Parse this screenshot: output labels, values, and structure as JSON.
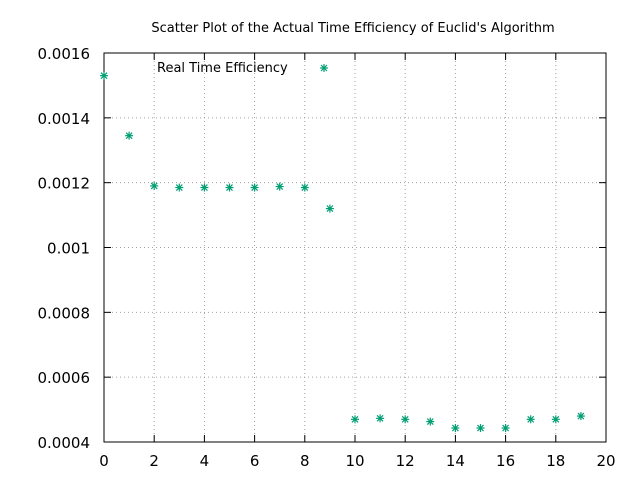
{
  "chart_data": {
    "type": "scatter",
    "title": "Scatter Plot of the Actual Time Efficiency of Euclid's Algorithm",
    "xlabel": "",
    "ylabel": "",
    "xlim": [
      0,
      20
    ],
    "ylim": [
      0.0004,
      0.0016
    ],
    "x_ticks": [
      0,
      2,
      4,
      6,
      8,
      10,
      12,
      14,
      16,
      18,
      20
    ],
    "x_tick_labels": [
      "0",
      "2",
      "4",
      "6",
      "8",
      "10",
      "12",
      "14",
      "16",
      "18",
      "20"
    ],
    "y_ticks": [
      0.0004,
      0.0006,
      0.0008,
      0.001,
      0.0012,
      0.0014,
      0.0016
    ],
    "y_tick_labels": [
      "0.0004",
      "0.0006",
      "0.0008",
      "0.001",
      "0.0012",
      "0.0014",
      "0.0016"
    ],
    "grid": true,
    "legend_position": "top-left",
    "series": [
      {
        "name": "Real Time Efficiency",
        "color": "#009e73",
        "marker": "asterisk",
        "x": [
          0,
          1,
          2,
          3,
          4,
          5,
          6,
          7,
          8,
          9,
          10,
          11,
          12,
          13,
          14,
          15,
          16,
          17,
          18,
          19
        ],
        "y": [
          0.00153,
          0.001345,
          0.00119,
          0.001185,
          0.001185,
          0.001185,
          0.001185,
          0.001188,
          0.001185,
          0.00112,
          0.00047,
          0.000473,
          0.00047,
          0.000463,
          0.000443,
          0.000443,
          0.000443,
          0.00047,
          0.00047,
          0.00048
        ]
      }
    ]
  }
}
